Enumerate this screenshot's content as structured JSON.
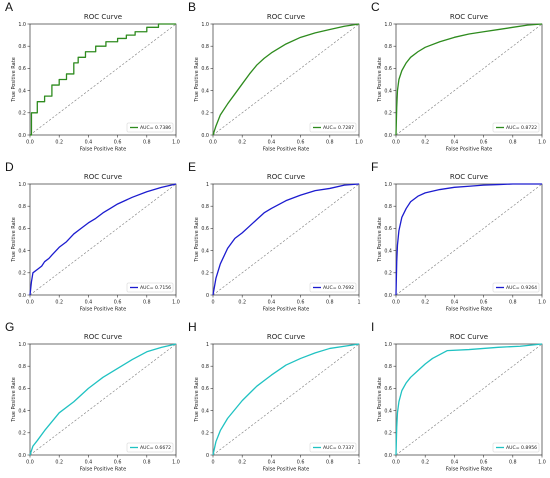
{
  "axis": {
    "title": "ROC Curve",
    "xlabel": "False Positive Rate",
    "ylabel": "True Positive Rate",
    "ticks": [
      "0.0",
      "0.2",
      "0.4",
      "0.6",
      "0.8",
      "1.0"
    ],
    "ticks_alt": [
      "0",
      "0.2",
      "0.4",
      "0.6",
      "0.8",
      "1"
    ]
  },
  "colors": {
    "green": "#2e8b1e",
    "blue": "#1c1ccf",
    "cyan": "#20c2c2",
    "diag": "#7a7a7a"
  },
  "chart_data": [
    {
      "panel": "A",
      "type": "line",
      "title": "ROC Curve",
      "xlabel": "False Positive Rate",
      "ylabel": "True Positive Rate",
      "xlim": [
        0,
        1
      ],
      "ylim": [
        0,
        1
      ],
      "legend": "bottom-right",
      "color": "green",
      "step": true,
      "tick_style": "dec",
      "series": [
        {
          "name": "AUC= 0.7386",
          "x": [
            0,
            0.01,
            0.01,
            0.05,
            0.05,
            0.1,
            0.1,
            0.15,
            0.15,
            0.2,
            0.2,
            0.25,
            0.25,
            0.3,
            0.3,
            0.33,
            0.33,
            0.38,
            0.38,
            0.45,
            0.45,
            0.52,
            0.52,
            0.6,
            0.6,
            0.66,
            0.66,
            0.72,
            0.72,
            0.8,
            0.8,
            0.88,
            0.88,
            1.0
          ],
          "y": [
            0,
            0,
            0.2,
            0.2,
            0.3,
            0.3,
            0.35,
            0.35,
            0.45,
            0.45,
            0.5,
            0.5,
            0.55,
            0.55,
            0.65,
            0.65,
            0.7,
            0.7,
            0.75,
            0.75,
            0.8,
            0.8,
            0.84,
            0.84,
            0.87,
            0.87,
            0.9,
            0.9,
            0.93,
            0.93,
            0.97,
            0.97,
            1.0,
            1.0
          ]
        }
      ]
    },
    {
      "panel": "B",
      "type": "line",
      "title": "ROC Curve",
      "xlabel": "False Positive Rate",
      "ylabel": "True Positive Rate",
      "xlim": [
        0,
        1
      ],
      "ylim": [
        0,
        1
      ],
      "legend": "bottom-right",
      "color": "green",
      "step": false,
      "tick_style": "dec",
      "series": [
        {
          "name": "AUC= 0.7287",
          "x": [
            0,
            0.02,
            0.05,
            0.1,
            0.15,
            0.2,
            0.25,
            0.3,
            0.35,
            0.4,
            0.5,
            0.6,
            0.7,
            0.8,
            0.9,
            1.0
          ],
          "y": [
            0,
            0.08,
            0.18,
            0.28,
            0.37,
            0.46,
            0.55,
            0.63,
            0.69,
            0.74,
            0.82,
            0.88,
            0.92,
            0.95,
            0.98,
            1.0
          ]
        }
      ]
    },
    {
      "panel": "C",
      "type": "line",
      "title": "ROC Curve",
      "xlabel": "False Positive Rate",
      "ylabel": "True Positive Rate",
      "xlim": [
        0,
        1
      ],
      "ylim": [
        0,
        1
      ],
      "legend": "bottom-right",
      "color": "green",
      "step": false,
      "tick_style": "dec",
      "series": [
        {
          "name": "AUC= 0.8722",
          "x": [
            0,
            0.005,
            0.01,
            0.02,
            0.04,
            0.07,
            0.1,
            0.15,
            0.2,
            0.3,
            0.4,
            0.5,
            0.6,
            0.7,
            0.8,
            0.9,
            1.0
          ],
          "y": [
            0,
            0.25,
            0.4,
            0.5,
            0.58,
            0.65,
            0.7,
            0.75,
            0.79,
            0.84,
            0.88,
            0.91,
            0.93,
            0.95,
            0.97,
            0.99,
            1.0
          ]
        }
      ]
    },
    {
      "panel": "D",
      "type": "line",
      "title": "ROC Curve",
      "xlabel": "False Positive Rate",
      "ylabel": "True Positive Rate",
      "xlim": [
        0,
        1
      ],
      "ylim": [
        0,
        1
      ],
      "legend": "bottom-right",
      "color": "blue",
      "step": false,
      "tick_style": "dec",
      "series": [
        {
          "name": "AUC= 0.7156",
          "x": [
            0,
            0.01,
            0.02,
            0.05,
            0.08,
            0.1,
            0.13,
            0.15,
            0.2,
            0.25,
            0.3,
            0.35,
            0.4,
            0.45,
            0.5,
            0.55,
            0.6,
            0.7,
            0.8,
            0.9,
            1.0
          ],
          "y": [
            0,
            0.12,
            0.2,
            0.23,
            0.26,
            0.3,
            0.33,
            0.36,
            0.43,
            0.48,
            0.55,
            0.6,
            0.65,
            0.69,
            0.74,
            0.78,
            0.82,
            0.88,
            0.93,
            0.97,
            1.0
          ]
        }
      ]
    },
    {
      "panel": "E",
      "type": "line",
      "title": "ROC Curve",
      "xlabel": "False Positive Rate",
      "ylabel": "True Positive Rate",
      "xlim": [
        0,
        1
      ],
      "ylim": [
        0,
        1
      ],
      "legend": "bottom-right",
      "color": "blue",
      "step": false,
      "tick_style": "int",
      "series": [
        {
          "name": "AUC= 0.7692",
          "x": [
            0,
            0.02,
            0.05,
            0.1,
            0.15,
            0.2,
            0.25,
            0.3,
            0.35,
            0.4,
            0.5,
            0.6,
            0.7,
            0.8,
            0.9,
            1.0
          ],
          "y": [
            0,
            0.15,
            0.28,
            0.42,
            0.51,
            0.56,
            0.62,
            0.68,
            0.74,
            0.78,
            0.85,
            0.9,
            0.94,
            0.96,
            0.99,
            1.0
          ]
        }
      ]
    },
    {
      "panel": "F",
      "type": "line",
      "title": "ROC Curve",
      "xlabel": "False Positive Rate",
      "ylabel": "True Positive Rate",
      "xlim": [
        0,
        1
      ],
      "ylim": [
        0,
        1
      ],
      "legend": "bottom-right",
      "color": "blue",
      "step": false,
      "tick_style": "dec",
      "series": [
        {
          "name": "AUC= 0.9264",
          "x": [
            0,
            0.005,
            0.01,
            0.02,
            0.04,
            0.07,
            0.1,
            0.15,
            0.2,
            0.3,
            0.4,
            0.5,
            0.6,
            0.7,
            0.8,
            0.9,
            1.0
          ],
          "y": [
            0,
            0.3,
            0.45,
            0.58,
            0.7,
            0.78,
            0.84,
            0.89,
            0.92,
            0.95,
            0.97,
            0.98,
            0.99,
            0.995,
            1.0,
            1.0,
            1.0
          ]
        }
      ]
    },
    {
      "panel": "G",
      "type": "line",
      "title": "ROC Curve",
      "xlabel": "False Positive Rate",
      "ylabel": "True Positive Rate",
      "xlim": [
        0,
        1
      ],
      "ylim": [
        0,
        1
      ],
      "legend": "bottom-right",
      "color": "cyan",
      "step": false,
      "tick_style": "dec",
      "series": [
        {
          "name": "AUC= 0.6672",
          "x": [
            0,
            0.02,
            0.05,
            0.1,
            0.15,
            0.2,
            0.3,
            0.4,
            0.5,
            0.6,
            0.7,
            0.8,
            0.9,
            1.0
          ],
          "y": [
            0,
            0.08,
            0.13,
            0.22,
            0.3,
            0.38,
            0.48,
            0.6,
            0.7,
            0.78,
            0.86,
            0.93,
            0.97,
            1.0
          ]
        }
      ]
    },
    {
      "panel": "H",
      "type": "line",
      "title": "ROC Curve",
      "xlabel": "False Positive Rate",
      "ylabel": "True Positive Rate",
      "xlim": [
        0,
        1
      ],
      "ylim": [
        0,
        1
      ],
      "legend": "bottom-right",
      "color": "cyan",
      "step": false,
      "tick_style": "int",
      "series": [
        {
          "name": "AUC= 0.7337",
          "x": [
            0,
            0.02,
            0.05,
            0.1,
            0.15,
            0.2,
            0.3,
            0.4,
            0.5,
            0.6,
            0.7,
            0.8,
            0.9,
            1.0
          ],
          "y": [
            0,
            0.12,
            0.22,
            0.33,
            0.41,
            0.49,
            0.62,
            0.72,
            0.81,
            0.87,
            0.92,
            0.96,
            0.98,
            1.0
          ]
        }
      ]
    },
    {
      "panel": "I",
      "type": "line",
      "title": "ROC Curve",
      "xlabel": "False Positive Rate",
      "ylabel": "True Positive Rate",
      "xlim": [
        0,
        1
      ],
      "ylim": [
        0,
        1
      ],
      "legend": "bottom-right",
      "color": "cyan",
      "step": false,
      "tick_style": "dec",
      "series": [
        {
          "name": "AUC= 0.8956",
          "x": [
            0,
            0.005,
            0.01,
            0.02,
            0.04,
            0.07,
            0.1,
            0.15,
            0.2,
            0.25,
            0.35,
            0.5,
            0.7,
            0.85,
            1.0
          ],
          "y": [
            0,
            0.25,
            0.38,
            0.48,
            0.58,
            0.65,
            0.7,
            0.76,
            0.82,
            0.87,
            0.94,
            0.95,
            0.97,
            0.98,
            1.0
          ]
        }
      ]
    }
  ]
}
